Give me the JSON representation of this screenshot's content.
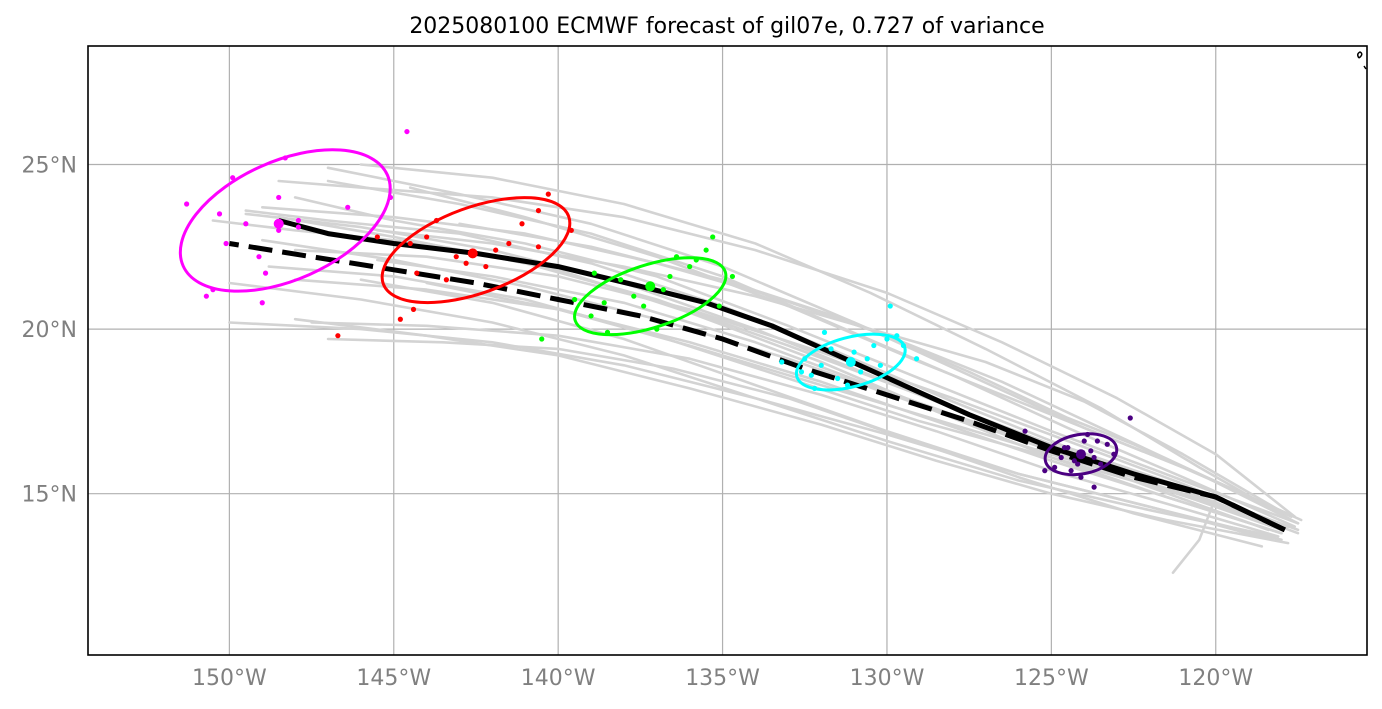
{
  "chart_data": {
    "type": "line",
    "title": "2025080100 ECMWF forecast of gil07e, 0.727 of variance",
    "xlabel": "",
    "ylabel": "",
    "xlim": [
      -154.3,
      -115.4
    ],
    "ylim": [
      10.1,
      28.6
    ],
    "grid": true,
    "x_ticks": [
      {
        "value": -150,
        "label": "150°W"
      },
      {
        "value": -145,
        "label": "145°W"
      },
      {
        "value": -140,
        "label": "140°W"
      },
      {
        "value": -135,
        "label": "135°W"
      },
      {
        "value": -130,
        "label": "130°W"
      },
      {
        "value": -125,
        "label": "125°W"
      },
      {
        "value": -120,
        "label": "120°W"
      }
    ],
    "y_ticks": [
      {
        "value": 15,
        "label": "15°N"
      },
      {
        "value": 20,
        "label": "20°N"
      },
      {
        "value": 25,
        "label": "25°N"
      }
    ],
    "colors": {
      "ensemble": "#d3d3d3",
      "mean_track": "#000000",
      "time_steps": [
        "#4b0082",
        "#00ffff",
        "#00ff00",
        "#ff0000",
        "#ff00ff"
      ]
    },
    "mean_track_solid": {
      "lon": [
        -117.9,
        -120.0,
        -122.5,
        -125.0,
        -127.5,
        -129.5,
        -131.5,
        -133.5,
        -135.5,
        -137.5,
        -140.0,
        -142.5,
        -145.0,
        -147.0,
        -148.5
      ],
      "lat": [
        13.9,
        14.9,
        15.6,
        16.4,
        17.4,
        18.3,
        19.2,
        20.1,
        20.8,
        21.3,
        21.9,
        22.3,
        22.6,
        22.9,
        23.3
      ]
    },
    "mean_track_dashed": {
      "lon": [
        -117.9,
        -120.0,
        -122.5,
        -125.0,
        -127.5,
        -130.0,
        -132.5,
        -135.0,
        -137.5,
        -140.0,
        -142.5,
        -145.0,
        -147.5,
        -150.0
      ],
      "lat": [
        13.9,
        14.9,
        15.5,
        16.3,
        17.2,
        18.0,
        18.8,
        19.7,
        20.4,
        20.9,
        21.4,
        21.8,
        22.2,
        22.6
      ]
    },
    "ensemble_tracks": [
      {
        "lon": [
          -117.5,
          -121,
          -125,
          -129,
          -133,
          -137,
          -141,
          -145,
          -148
        ],
        "lat": [
          14.1,
          15.4,
          16.9,
          18.5,
          20.1,
          21.6,
          22.6,
          23.3,
          24.0
        ]
      },
      {
        "lon": [
          -117.8,
          -121,
          -125,
          -129,
          -133,
          -137,
          -141,
          -145,
          -149
        ],
        "lat": [
          14.0,
          15.0,
          16.3,
          17.7,
          19.1,
          20.3,
          21.3,
          22.1,
          22.7
        ]
      },
      {
        "lon": [
          -118.0,
          -122,
          -126,
          -130,
          -134,
          -138,
          -142,
          -146
        ],
        "lat": [
          13.6,
          14.6,
          15.6,
          16.9,
          18.3,
          19.7,
          20.8,
          21.5
        ]
      },
      {
        "lon": [
          -117.6,
          -121,
          -125,
          -129,
          -133,
          -137,
          -141,
          -144.5
        ],
        "lat": [
          14.3,
          15.8,
          17.4,
          19.0,
          20.7,
          22.2,
          23.4,
          24.3
        ]
      },
      {
        "lon": [
          -118.2,
          -122,
          -126,
          -130,
          -134,
          -138,
          -142,
          -146,
          -150
        ],
        "lat": [
          13.7,
          14.5,
          15.4,
          16.6,
          17.9,
          19.2,
          20.2,
          20.9,
          21.4
        ]
      },
      {
        "lon": [
          -117.4,
          -120.5,
          -124,
          -127.5,
          -131,
          -135,
          -139,
          -143,
          -147
        ],
        "lat": [
          14.2,
          15.6,
          17.0,
          18.6,
          20.2,
          21.9,
          23.2,
          24.1,
          24.9
        ]
      },
      {
        "lon": [
          -118.0,
          -121.5,
          -125,
          -128.5,
          -132,
          -136,
          -140,
          -144,
          -148
        ],
        "lat": [
          13.8,
          14.9,
          16.0,
          17.2,
          18.4,
          19.6,
          20.6,
          21.2,
          21.5
        ]
      },
      {
        "lon": [
          -121.3,
          -120.5,
          -120,
          -124,
          -128,
          -132,
          -136,
          -140,
          -144
        ],
        "lat": [
          12.6,
          13.6,
          14.9,
          15.9,
          17.1,
          18.3,
          19.5,
          20.6,
          21.4
        ]
      },
      {
        "lon": [
          -117.5,
          -121,
          -125,
          -129,
          -133,
          -137,
          -141,
          -145,
          -148.5
        ],
        "lat": [
          13.8,
          15.1,
          16.5,
          18.0,
          19.5,
          20.9,
          22.0,
          22.8,
          23.4
        ]
      },
      {
        "lon": [
          -118.0,
          -122,
          -126,
          -130,
          -134,
          -138,
          -142,
          -146,
          -149.5
        ],
        "lat": [
          13.9,
          15.3,
          16.8,
          18.4,
          20.0,
          21.4,
          22.4,
          23.1,
          23.5
        ]
      },
      {
        "lon": [
          -117.8,
          -121.5,
          -125,
          -128.5,
          -132,
          -136,
          -140,
          -144,
          -148
        ],
        "lat": [
          13.5,
          14.2,
          15.0,
          16.0,
          17.1,
          18.2,
          19.2,
          19.8,
          20.3
        ]
      },
      {
        "lon": [
          -117.6,
          -121,
          -124.5,
          -128,
          -131.5,
          -135,
          -139,
          -143,
          -147
        ],
        "lat": [
          14.0,
          15.5,
          17.0,
          18.6,
          20.1,
          21.6,
          22.9,
          23.8,
          24.5
        ]
      },
      {
        "lon": [
          -118.1,
          -121.5,
          -125,
          -128.5,
          -132,
          -136,
          -140,
          -144,
          -147.5
        ],
        "lat": [
          13.7,
          14.7,
          15.7,
          16.9,
          18.0,
          19.1,
          19.8,
          20.1,
          20.2
        ]
      },
      {
        "lon": [
          -117.7,
          -120.5,
          -123.5,
          -127,
          -130.5,
          -134,
          -138,
          -142,
          -146
        ],
        "lat": [
          14.2,
          15.8,
          17.6,
          19.4,
          21.1,
          22.6,
          23.8,
          24.6,
          25.0
        ]
      },
      {
        "lon": [
          -117.6,
          -120,
          -123,
          -126.5,
          -130,
          -134,
          -138,
          -142,
          -146,
          -148.5
        ],
        "lat": [
          14.3,
          16.2,
          17.9,
          19.6,
          21.1,
          22.4,
          23.4,
          24.0,
          24.3,
          24.5
        ]
      },
      {
        "lon": [
          -118.4,
          -122,
          -126,
          -130,
          -134,
          -138,
          -142,
          -145.5
        ],
        "lat": [
          13.9,
          15.2,
          16.7,
          18.1,
          19.6,
          20.8,
          21.6,
          22.1
        ]
      },
      {
        "lon": [
          -117.9,
          -121,
          -124.5,
          -128,
          -132,
          -136,
          -140,
          -144,
          -148
        ],
        "lat": [
          14.0,
          15.3,
          16.6,
          17.9,
          19.3,
          20.6,
          21.6,
          22.2,
          22.4
        ]
      },
      {
        "lon": [
          -118.3,
          -122,
          -126,
          -130,
          -134,
          -138,
          -142,
          -146,
          -150
        ],
        "lat": [
          13.6,
          14.6,
          15.6,
          16.8,
          17.9,
          18.9,
          19.6,
          20.0,
          20.2
        ]
      },
      {
        "lon": [
          -117.5,
          -121,
          -124.5,
          -128,
          -131.5,
          -135,
          -139,
          -143,
          -147,
          -149.5
        ],
        "lat": [
          13.9,
          15.2,
          16.4,
          17.8,
          19.3,
          20.7,
          22.0,
          22.9,
          23.3,
          23.6
        ]
      },
      {
        "lon": [
          -118.0,
          -121.5,
          -125,
          -129,
          -133,
          -137,
          -141,
          -145,
          -148.8
        ],
        "lat": [
          14.0,
          15.1,
          16.1,
          17.2,
          18.5,
          19.8,
          20.9,
          21.6,
          21.9
        ]
      },
      {
        "lon": [
          -118.6,
          -122.5,
          -126,
          -129.5,
          -133,
          -136.5,
          -140,
          -143.5,
          -147
        ],
        "lat": [
          13.4,
          14.4,
          15.5,
          16.7,
          17.9,
          18.8,
          19.4,
          19.6,
          19.7
        ]
      },
      {
        "lon": [
          -117.9,
          -121,
          -124,
          -127,
          -130.5,
          -134,
          -138,
          -142,
          -145.5
        ],
        "lat": [
          14.4,
          16.2,
          17.8,
          19.0,
          20.0,
          21.0,
          21.9,
          22.6,
          23.0
        ]
      },
      {
        "lon": [
          -118.0,
          -121.5,
          -125,
          -128.5,
          -132,
          -136,
          -140,
          -144,
          -148,
          -150.5
        ],
        "lat": [
          13.8,
          14.9,
          16.1,
          17.5,
          19.0,
          20.5,
          21.8,
          22.6,
          23.0,
          23.3
        ]
      },
      {
        "lon": [
          -117.7,
          -120.5,
          -122.5,
          -124.5,
          -127.5,
          -131,
          -135,
          -139,
          -143
        ],
        "lat": [
          14.3,
          15.6,
          16.5,
          17.3,
          18.7,
          20.2,
          21.5,
          22.5,
          23.2
        ]
      },
      {
        "lon": [
          -117.5,
          -120.5,
          -123.5,
          -126.5,
          -130,
          -133.5,
          -137,
          -141,
          -145,
          -149
        ],
        "lat": [
          14.1,
          15.6,
          17.0,
          18.4,
          19.8,
          21.0,
          22.0,
          22.9,
          23.4,
          23.7
        ]
      }
    ],
    "time_steps": [
      {
        "color": "#4b0082",
        "mean": {
          "lon": -124.1,
          "lat": 16.2
        },
        "ellipse": {
          "lon": -124.1,
          "lat": 16.2,
          "semi_major_deg": 1.1,
          "semi_minor_deg": 0.6,
          "angle_deg": 10
        },
        "members": [
          [
            -123.9,
            16.8
          ],
          [
            -123.3,
            16.5
          ],
          [
            -124.6,
            16.4
          ],
          [
            -124.2,
            15.9
          ],
          [
            -123.7,
            16.1
          ],
          [
            -124.9,
            15.8
          ],
          [
            -123.5,
            15.9
          ],
          [
            -124.0,
            16.6
          ],
          [
            -124.4,
            15.7
          ],
          [
            -123.1,
            16.2
          ],
          [
            -124.7,
            16.1
          ],
          [
            -123.8,
            16.3
          ],
          [
            -124.3,
            16.0
          ],
          [
            -125.2,
            15.7
          ],
          [
            -123.6,
            16.6
          ],
          [
            -124.1,
            15.5
          ],
          [
            -122.6,
            17.3
          ],
          [
            -125.8,
            16.9
          ],
          [
            -123.7,
            15.2
          ],
          [
            -124.5,
            16.4
          ]
        ]
      },
      {
        "color": "#00ffff",
        "mean": {
          "lon": -131.1,
          "lat": 19.0
        },
        "ellipse": {
          "lon": -131.1,
          "lat": 19.0,
          "semi_major_deg": 1.7,
          "semi_minor_deg": 0.75,
          "angle_deg": 15
        },
        "members": [
          [
            -131.0,
            19.3
          ],
          [
            -132.3,
            18.6
          ],
          [
            -130.4,
            19.5
          ],
          [
            -132.0,
            18.9
          ],
          [
            -131.5,
            18.5
          ],
          [
            -129.9,
            20.7
          ],
          [
            -130.2,
            18.9
          ],
          [
            -131.7,
            19.4
          ],
          [
            -132.6,
            18.7
          ],
          [
            -129.5,
            19.5
          ],
          [
            -130.8,
            18.7
          ],
          [
            -133.2,
            19.0
          ],
          [
            -131.2,
            18.3
          ],
          [
            -130.0,
            19.7
          ],
          [
            -132.2,
            18.2
          ],
          [
            -129.1,
            19.1
          ],
          [
            -131.9,
            19.9
          ],
          [
            -130.6,
            19.1
          ],
          [
            -132.5,
            19.1
          ],
          [
            -129.7,
            19.8
          ]
        ]
      },
      {
        "color": "#00ff00",
        "mean": {
          "lon": -137.2,
          "lat": 21.3
        },
        "ellipse": {
          "lon": -137.2,
          "lat": 21.0,
          "semi_major_deg": 2.4,
          "semi_minor_deg": 0.95,
          "angle_deg": 18
        },
        "members": [
          [
            -138.6,
            20.8
          ],
          [
            -136.0,
            21.9
          ],
          [
            -135.5,
            22.4
          ],
          [
            -137.4,
            20.7
          ],
          [
            -138.1,
            21.5
          ],
          [
            -136.4,
            22.2
          ],
          [
            -139.0,
            20.4
          ],
          [
            -135.1,
            20.7
          ],
          [
            -137.7,
            21.0
          ],
          [
            -136.8,
            21.2
          ],
          [
            -134.7,
            21.6
          ],
          [
            -138.9,
            21.7
          ],
          [
            -137.0,
            20.0
          ],
          [
            -135.3,
            22.8
          ],
          [
            -138.5,
            19.9
          ],
          [
            -136.6,
            21.6
          ],
          [
            -139.5,
            20.9
          ],
          [
            -140.5,
            19.7
          ],
          [
            -137.2,
            21.3
          ],
          [
            -135.8,
            22.1
          ]
        ]
      },
      {
        "color": "#ff0000",
        "mean": {
          "lon": -142.6,
          "lat": 22.3
        },
        "ellipse": {
          "lon": -142.5,
          "lat": 22.4,
          "semi_major_deg": 3.0,
          "semi_minor_deg": 1.3,
          "angle_deg": 20
        },
        "members": [
          [
            -144.3,
            21.7
          ],
          [
            -143.1,
            22.2
          ],
          [
            -141.5,
            22.6
          ],
          [
            -140.6,
            23.6
          ],
          [
            -142.6,
            22.3
          ],
          [
            -144.0,
            22.8
          ],
          [
            -140.3,
            24.1
          ],
          [
            -143.7,
            23.3
          ],
          [
            -141.9,
            22.4
          ],
          [
            -142.8,
            22.0
          ],
          [
            -144.5,
            22.6
          ],
          [
            -139.6,
            23.0
          ],
          [
            -141.1,
            23.2
          ],
          [
            -143.4,
            21.5
          ],
          [
            -144.4,
            20.6
          ],
          [
            -145.5,
            22.8
          ],
          [
            -142.2,
            21.9
          ],
          [
            -144.8,
            20.3
          ],
          [
            -146.7,
            19.8
          ],
          [
            -140.6,
            22.5
          ]
        ]
      },
      {
        "color": "#ff00ff",
        "mean": {
          "lon": -148.5,
          "lat": 23.2
        },
        "ellipse": {
          "lon": -148.3,
          "lat": 23.3,
          "semi_major_deg": 3.4,
          "semi_minor_deg": 1.8,
          "angle_deg": 24
        },
        "members": [
          [
            -150.1,
            22.6
          ],
          [
            -148.3,
            25.2
          ],
          [
            -149.9,
            24.6
          ],
          [
            -151.3,
            23.8
          ],
          [
            -148.5,
            23.0
          ],
          [
            -147.9,
            23.1
          ],
          [
            -150.5,
            21.2
          ],
          [
            -148.9,
            21.7
          ],
          [
            -149.5,
            23.2
          ],
          [
            -146.4,
            23.7
          ],
          [
            -150.7,
            21.0
          ],
          [
            -148.5,
            24.0
          ],
          [
            -149.1,
            22.2
          ],
          [
            -144.6,
            26.0
          ],
          [
            -145.1,
            24.0
          ],
          [
            -149.0,
            20.8
          ],
          [
            -150.3,
            23.5
          ],
          [
            -147.9,
            23.3
          ]
        ]
      }
    ]
  }
}
